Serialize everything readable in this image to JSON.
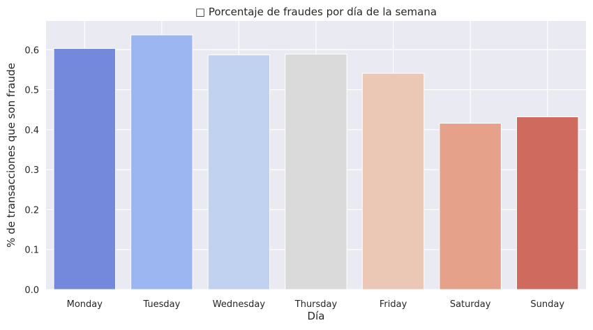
{
  "chart_data": {
    "type": "bar",
    "title": "□ Porcentaje de fraudes por día de la semana",
    "xlabel": "Día",
    "ylabel": "% de transacciones que son fraude",
    "categories": [
      "Monday",
      "Tuesday",
      "Wednesday",
      "Thursday",
      "Friday",
      "Saturday",
      "Sunday"
    ],
    "values": [
      0.603,
      0.637,
      0.587,
      0.589,
      0.541,
      0.416,
      0.432
    ],
    "colors": [
      "#7489db",
      "#9bb6f0",
      "#c0d2ef",
      "#dadada",
      "#ebc7b5",
      "#e5a18a",
      "#cf6b5e"
    ],
    "ylim": [
      0,
      0.672
    ],
    "yticks": [
      "0.0",
      "0.1",
      "0.2",
      "0.3",
      "0.4",
      "0.5",
      "0.6"
    ],
    "ytick_values": [
      0,
      0.1,
      0.2,
      0.3,
      0.4,
      0.5,
      0.6
    ],
    "grid": true,
    "background": "#eaeaf2"
  }
}
